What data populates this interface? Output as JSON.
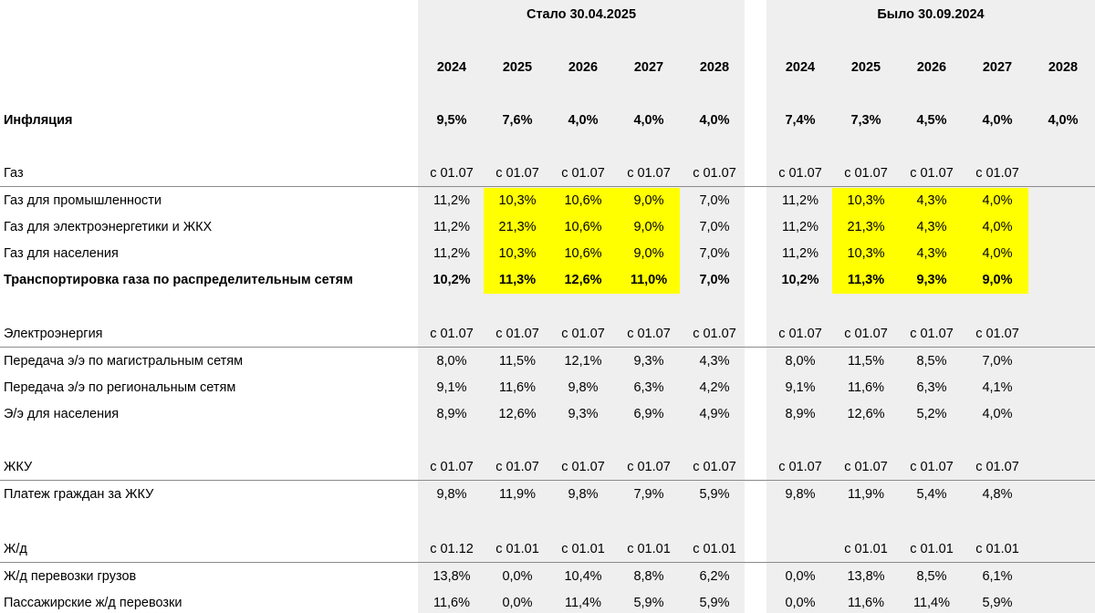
{
  "header": {
    "new_title": "Стало 30.04.2025",
    "old_title": "Было 30.09.2024",
    "new_years": [
      "2024",
      "2025",
      "2026",
      "2027",
      "2028"
    ],
    "old_years": [
      "2024",
      "2025",
      "2026",
      "2027",
      "2028"
    ]
  },
  "inflation": {
    "label": "Инфляция",
    "new": [
      "9,5%",
      "7,6%",
      "4,0%",
      "4,0%",
      "4,0%"
    ],
    "old": [
      "7,4%",
      "7,3%",
      "4,5%",
      "4,0%",
      "4,0%"
    ]
  },
  "sections": [
    {
      "title": "Газ",
      "new_dates": [
        "с 01.07",
        "с 01.07",
        "с 01.07",
        "с 01.07",
        "с 01.07"
      ],
      "old_dates": [
        "с 01.07",
        "с 01.07",
        "с 01.07",
        "с 01.07",
        ""
      ],
      "rows": [
        {
          "label": "Газ для промышленности",
          "new": [
            "11,2%",
            "10,3%",
            "10,6%",
            "9,0%",
            "7,0%"
          ],
          "old": [
            "11,2%",
            "10,3%",
            "4,3%",
            "4,0%",
            ""
          ]
        },
        {
          "label": "Газ для электроэнергетики и ЖКХ",
          "new": [
            "11,2%",
            "21,3%",
            "10,6%",
            "9,0%",
            "7,0%"
          ],
          "old": [
            "11,2%",
            "21,3%",
            "4,3%",
            "4,0%",
            ""
          ]
        },
        {
          "label": "Газ для населения",
          "new": [
            "11,2%",
            "10,3%",
            "10,6%",
            "9,0%",
            "7,0%"
          ],
          "old": [
            "11,2%",
            "10,3%",
            "4,3%",
            "4,0%",
            ""
          ]
        },
        {
          "label": "Транспортировка газа по распределительным сетям",
          "new": [
            "10,2%",
            "11,3%",
            "12,6%",
            "11,0%",
            "7,0%"
          ],
          "old": [
            "10,2%",
            "11,3%",
            "9,3%",
            "9,0%",
            ""
          ]
        }
      ]
    },
    {
      "title": "Электроэнергия",
      "new_dates": [
        "с 01.07",
        "с 01.07",
        "с 01.07",
        "с 01.07",
        "с 01.07"
      ],
      "old_dates": [
        "с 01.07",
        "с 01.07",
        "с 01.07",
        "с 01.07",
        ""
      ],
      "rows": [
        {
          "label": "Передача э/э по магистральным сетям",
          "new": [
            "8,0%",
            "11,5%",
            "12,1%",
            "9,3%",
            "4,3%"
          ],
          "old": [
            "8,0%",
            "11,5%",
            "8,5%",
            "7,0%",
            ""
          ]
        },
        {
          "label": "Передача э/э по региональным сетям",
          "new": [
            "9,1%",
            "11,6%",
            "9,8%",
            "6,3%",
            "4,2%"
          ],
          "old": [
            "9,1%",
            "11,6%",
            "6,3%",
            "4,1%",
            ""
          ]
        },
        {
          "label": "Э/э для населения",
          "new": [
            "8,9%",
            "12,6%",
            "9,3%",
            "6,9%",
            "4,9%"
          ],
          "old": [
            "8,9%",
            "12,6%",
            "5,2%",
            "4,0%",
            ""
          ]
        }
      ]
    },
    {
      "title": "ЖКУ",
      "new_dates": [
        "с 01.07",
        "с 01.07",
        "с 01.07",
        "с 01.07",
        "с 01.07"
      ],
      "old_dates": [
        "с 01.07",
        "с 01.07",
        "с 01.07",
        "с 01.07",
        ""
      ],
      "rows": [
        {
          "label": "Платеж граждан за ЖКУ",
          "new": [
            "9,8%",
            "11,9%",
            "9,8%",
            "7,9%",
            "5,9%"
          ],
          "old": [
            "9,8%",
            "11,9%",
            "5,4%",
            "4,8%",
            ""
          ]
        }
      ]
    },
    {
      "title": "Ж/д",
      "new_dates": [
        "с 01.12",
        "с 01.01",
        "с 01.01",
        "с 01.01",
        "с 01.01"
      ],
      "old_dates": [
        "",
        "с 01.01",
        "с 01.01",
        "с 01.01",
        ""
      ],
      "rows": [
        {
          "label": "Ж/д перевозки грузов",
          "new": [
            "13,8%",
            "0,0%",
            "10,4%",
            "8,8%",
            "6,2%"
          ],
          "old": [
            "0,0%",
            "13,8%",
            "8,5%",
            "6,1%",
            ""
          ]
        },
        {
          "label": "Пассажирские ж/д перевозки",
          "new": [
            "11,6%",
            "0,0%",
            "11,4%",
            "5,9%",
            "5,9%"
          ],
          "old": [
            "0,0%",
            "11,6%",
            "11,4%",
            "5,9%",
            ""
          ]
        }
      ]
    }
  ],
  "colors": {
    "highlight": "#ffff00",
    "column_background": "#efefef"
  }
}
